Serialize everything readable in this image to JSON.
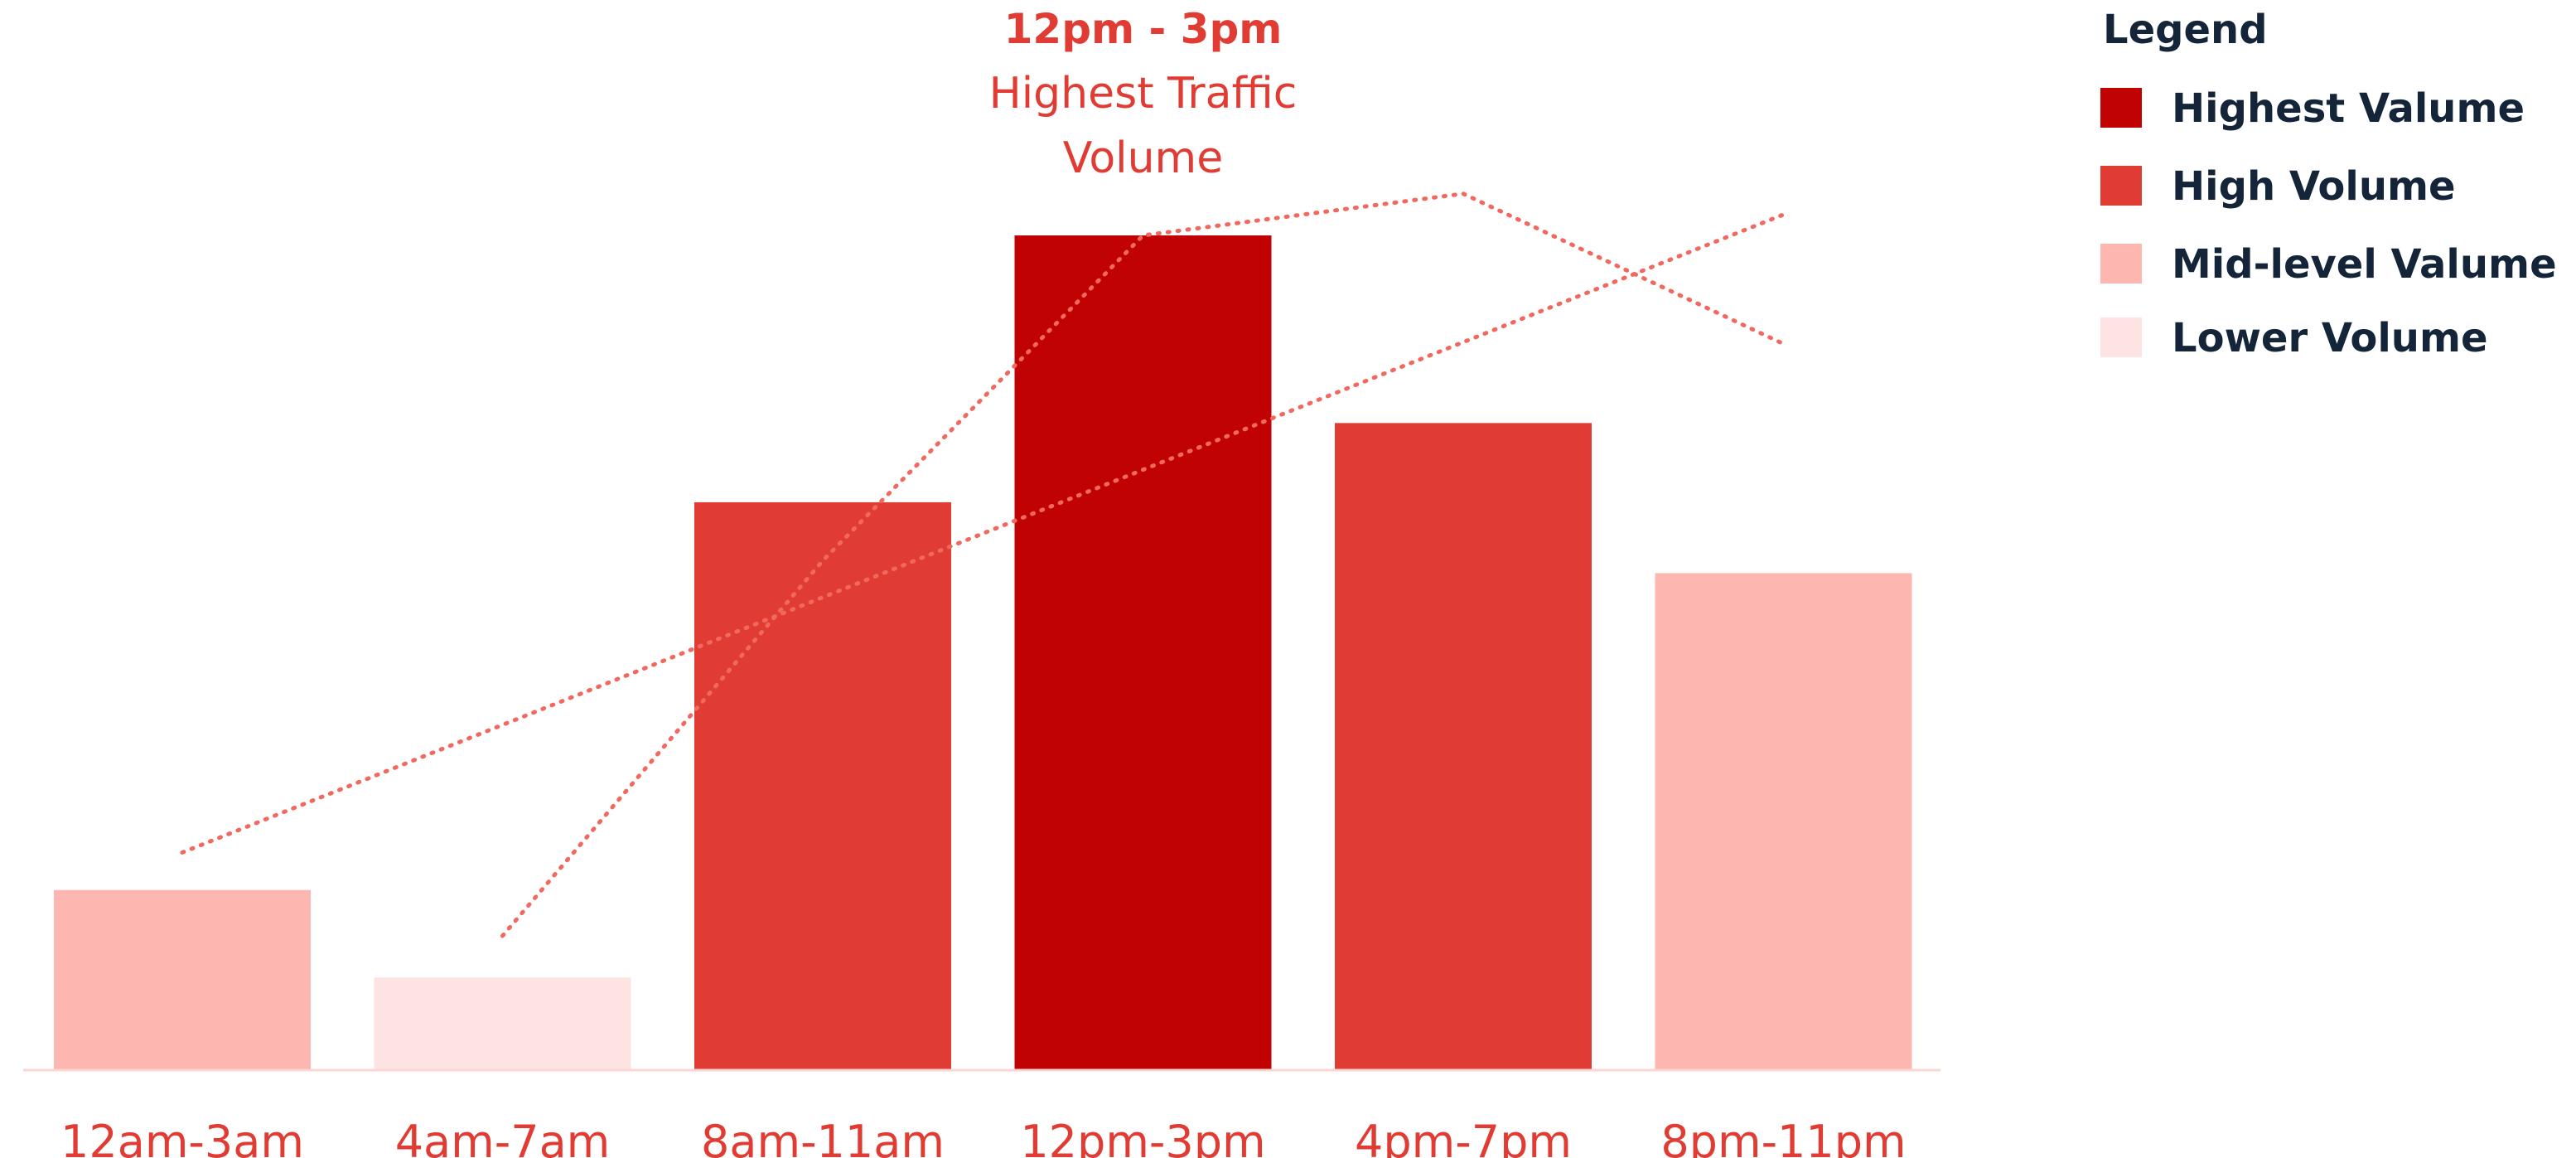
{
  "chart_data": {
    "type": "bar",
    "categories": [
      "12am-3am",
      "4am-7am",
      "8am-11am",
      "12pm-3pm",
      "4pm-7pm",
      "8pm-11pm"
    ],
    "values": [
      21.5,
      11,
      68,
      100,
      77.5,
      59.5
    ],
    "levels": [
      "mid",
      "lower",
      "high",
      "highest",
      "high",
      "mid"
    ],
    "ylim": [
      0,
      100
    ],
    "grid": false,
    "annotation": {
      "target": "12pm-3pm",
      "title": "12pm - 3pm",
      "lines": [
        "Highest Traffic",
        "Volume"
      ]
    },
    "overlays": [
      {
        "style": "dotted",
        "x_start": "4am-7am",
        "values": [
          16,
          61,
          100,
          105,
          87
        ]
      },
      {
        "style": "dotted",
        "x_start": "12am-3am",
        "values": [
          26,
          102.5
        ]
      }
    ],
    "legend": {
      "title": "Legend",
      "placement": "top-right",
      "items": [
        {
          "level": "highest",
          "label": "Highest Valume"
        },
        {
          "level": "high",
          "label": "High Volume"
        },
        {
          "level": "mid",
          "label": "Mid-level Valume"
        },
        {
          "level": "lower",
          "label": "Lower Volume"
        }
      ]
    },
    "colors": {
      "highest": "#c00202",
      "high": "#e03c33",
      "mid": "#fdb6b0",
      "lower": "#fde3e1",
      "label": "#e03c33",
      "trend": "#f1685e",
      "axis": "#fbd6d2",
      "legend_text": "#14253a"
    }
  }
}
